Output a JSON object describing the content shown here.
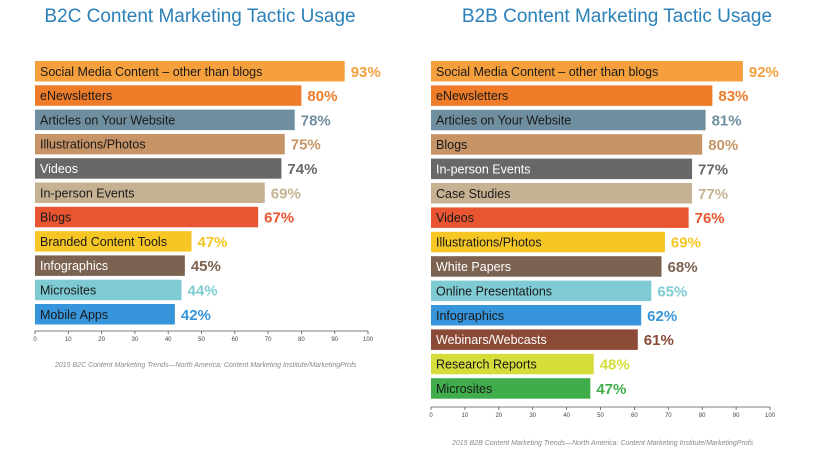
{
  "chart_data": [
    {
      "id": "b2c",
      "type": "bar",
      "orientation": "horizontal",
      "title": "B2C Content Marketing Tactic Usage",
      "categories": [
        "Social Media Content – other than blogs",
        "eNewsletters",
        "Articles on Your Website",
        "Illustrations/Photos",
        "Videos",
        "In-person Events",
        "Blogs",
        "Branded Content Tools",
        "Infographics",
        "Microsites",
        "Mobile Apps"
      ],
      "values": [
        93,
        80,
        78,
        75,
        74,
        69,
        67,
        47,
        45,
        44,
        42
      ],
      "value_labels": [
        "93%",
        "80%",
        "78%",
        "75%",
        "74%",
        "69%",
        "67%",
        "47%",
        "45%",
        "44%",
        "42%"
      ],
      "colors": [
        "#f5a03c",
        "#ef7c28",
        "#6f8e9f",
        "#c69466",
        "#686868",
        "#c6b292",
        "#e95530",
        "#f6c624",
        "#7c6250",
        "#7fcbd3",
        "#3795db"
      ],
      "value_colors": [
        "#f5a03c",
        "#ef7c28",
        "#6f8e9f",
        "#c69466",
        "#686868",
        "#c6b292",
        "#e95530",
        "#f6c624",
        "#7c6250",
        "#7fcbd3",
        "#3795db"
      ],
      "xlim": [
        0,
        100
      ],
      "xticks": [
        "0",
        "10",
        "20",
        "30",
        "40",
        "50",
        "60",
        "70",
        "80",
        "90",
        "100"
      ],
      "source": "2015 B2C Content Marketing Trends—North America: Content Marketing Institute/MarketingProfs",
      "grid": false,
      "legend": "none"
    },
    {
      "id": "b2b",
      "type": "bar",
      "orientation": "horizontal",
      "title": "B2B Content Marketing Tactic Usage",
      "categories": [
        "Social Media Content – other than blogs",
        "eNewsletters",
        "Articles on Your Website",
        "Blogs",
        "In-person Events",
        "Case Studies",
        "Videos",
        "Illustrations/Photos",
        "White Papers",
        "Online Presentations",
        "Infographics",
        "Webinars/Webcasts",
        "Research Reports",
        "Microsites"
      ],
      "values": [
        92,
        83,
        81,
        80,
        77,
        77,
        76,
        69,
        68,
        65,
        62,
        61,
        48,
        47
      ],
      "value_labels": [
        "92%",
        "83%",
        "81%",
        "80%",
        "77%",
        "77%",
        "76%",
        "69%",
        "68%",
        "65%",
        "62%",
        "61%",
        "48%",
        "47%"
      ],
      "colors": [
        "#f5a03c",
        "#ef7c28",
        "#6f8e9f",
        "#c69466",
        "#686868",
        "#c6b292",
        "#e95530",
        "#f6c624",
        "#7c6250",
        "#7fcbd3",
        "#3795db",
        "#8a4a35",
        "#d6dc3a",
        "#3fae4a"
      ],
      "value_colors": [
        "#f5a03c",
        "#ef7c28",
        "#6f8e9f",
        "#c69466",
        "#686868",
        "#c6b292",
        "#e95530",
        "#f6c624",
        "#7c6250",
        "#7fcbd3",
        "#3795db",
        "#8a4a35",
        "#d6dc3a",
        "#3fae4a"
      ],
      "xlim": [
        0,
        100
      ],
      "xticks": [
        "0",
        "10",
        "20",
        "30",
        "40",
        "50",
        "60",
        "70",
        "80",
        "90",
        "100"
      ],
      "source": "2015 B2B Content Marketing Trends—North America: Content Marketing Institute/MarketingProfs",
      "grid": false,
      "legend": "none"
    }
  ]
}
